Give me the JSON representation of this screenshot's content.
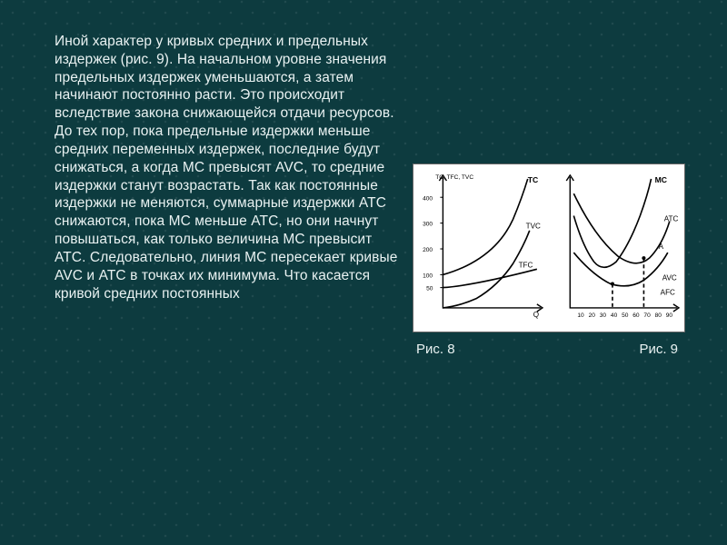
{
  "body_text": "Иной характер у кривых средних и предельных издержек (рис. 9). На начальном уровне значения предельных издержек уменьшаются, а затем начинают постоянно расти. Это происходит вследствие закона снижающейся отдачи ресурсов.\nДо тех пор, пока предельные издержки меньше средних переменных издержек, последние будут снижаться, а когда МС превысят AVC, то средние издержки станут возрастать. Так как постоянные издержки не меняются, суммарные издержки АТС снижаются, пока МС меньше АТС, но они начнут повышаться, как только величина МС превысит АТС. Следовательно, линия МС пересекает кривые AVC и АТС в точках их минимума. Что касается кривой средних постоянных",
  "fig8": {
    "caption": "Рис. 8",
    "y_ticks": [
      "400",
      "300",
      "200",
      "100",
      "50"
    ],
    "y_header": "TC, TFC, TVC",
    "curves": {
      "TC": "TC",
      "TFC": "TFC",
      "TVC": "TVC"
    },
    "x_label": "Q"
  },
  "fig9": {
    "caption": "Рис. 9",
    "curves": {
      "MC": "MC",
      "ATC": "ATC",
      "AVC": "AVC",
      "A": "A",
      "AFC": "AFC"
    },
    "x_ticks": [
      "10",
      "20",
      "30",
      "40",
      "50",
      "60",
      "70",
      "80",
      "90"
    ]
  },
  "colors": {
    "background": "#0d3b3f",
    "text": "#e9f2f2",
    "chart_bg": "#ffffff",
    "chart_stroke": "#000000"
  }
}
